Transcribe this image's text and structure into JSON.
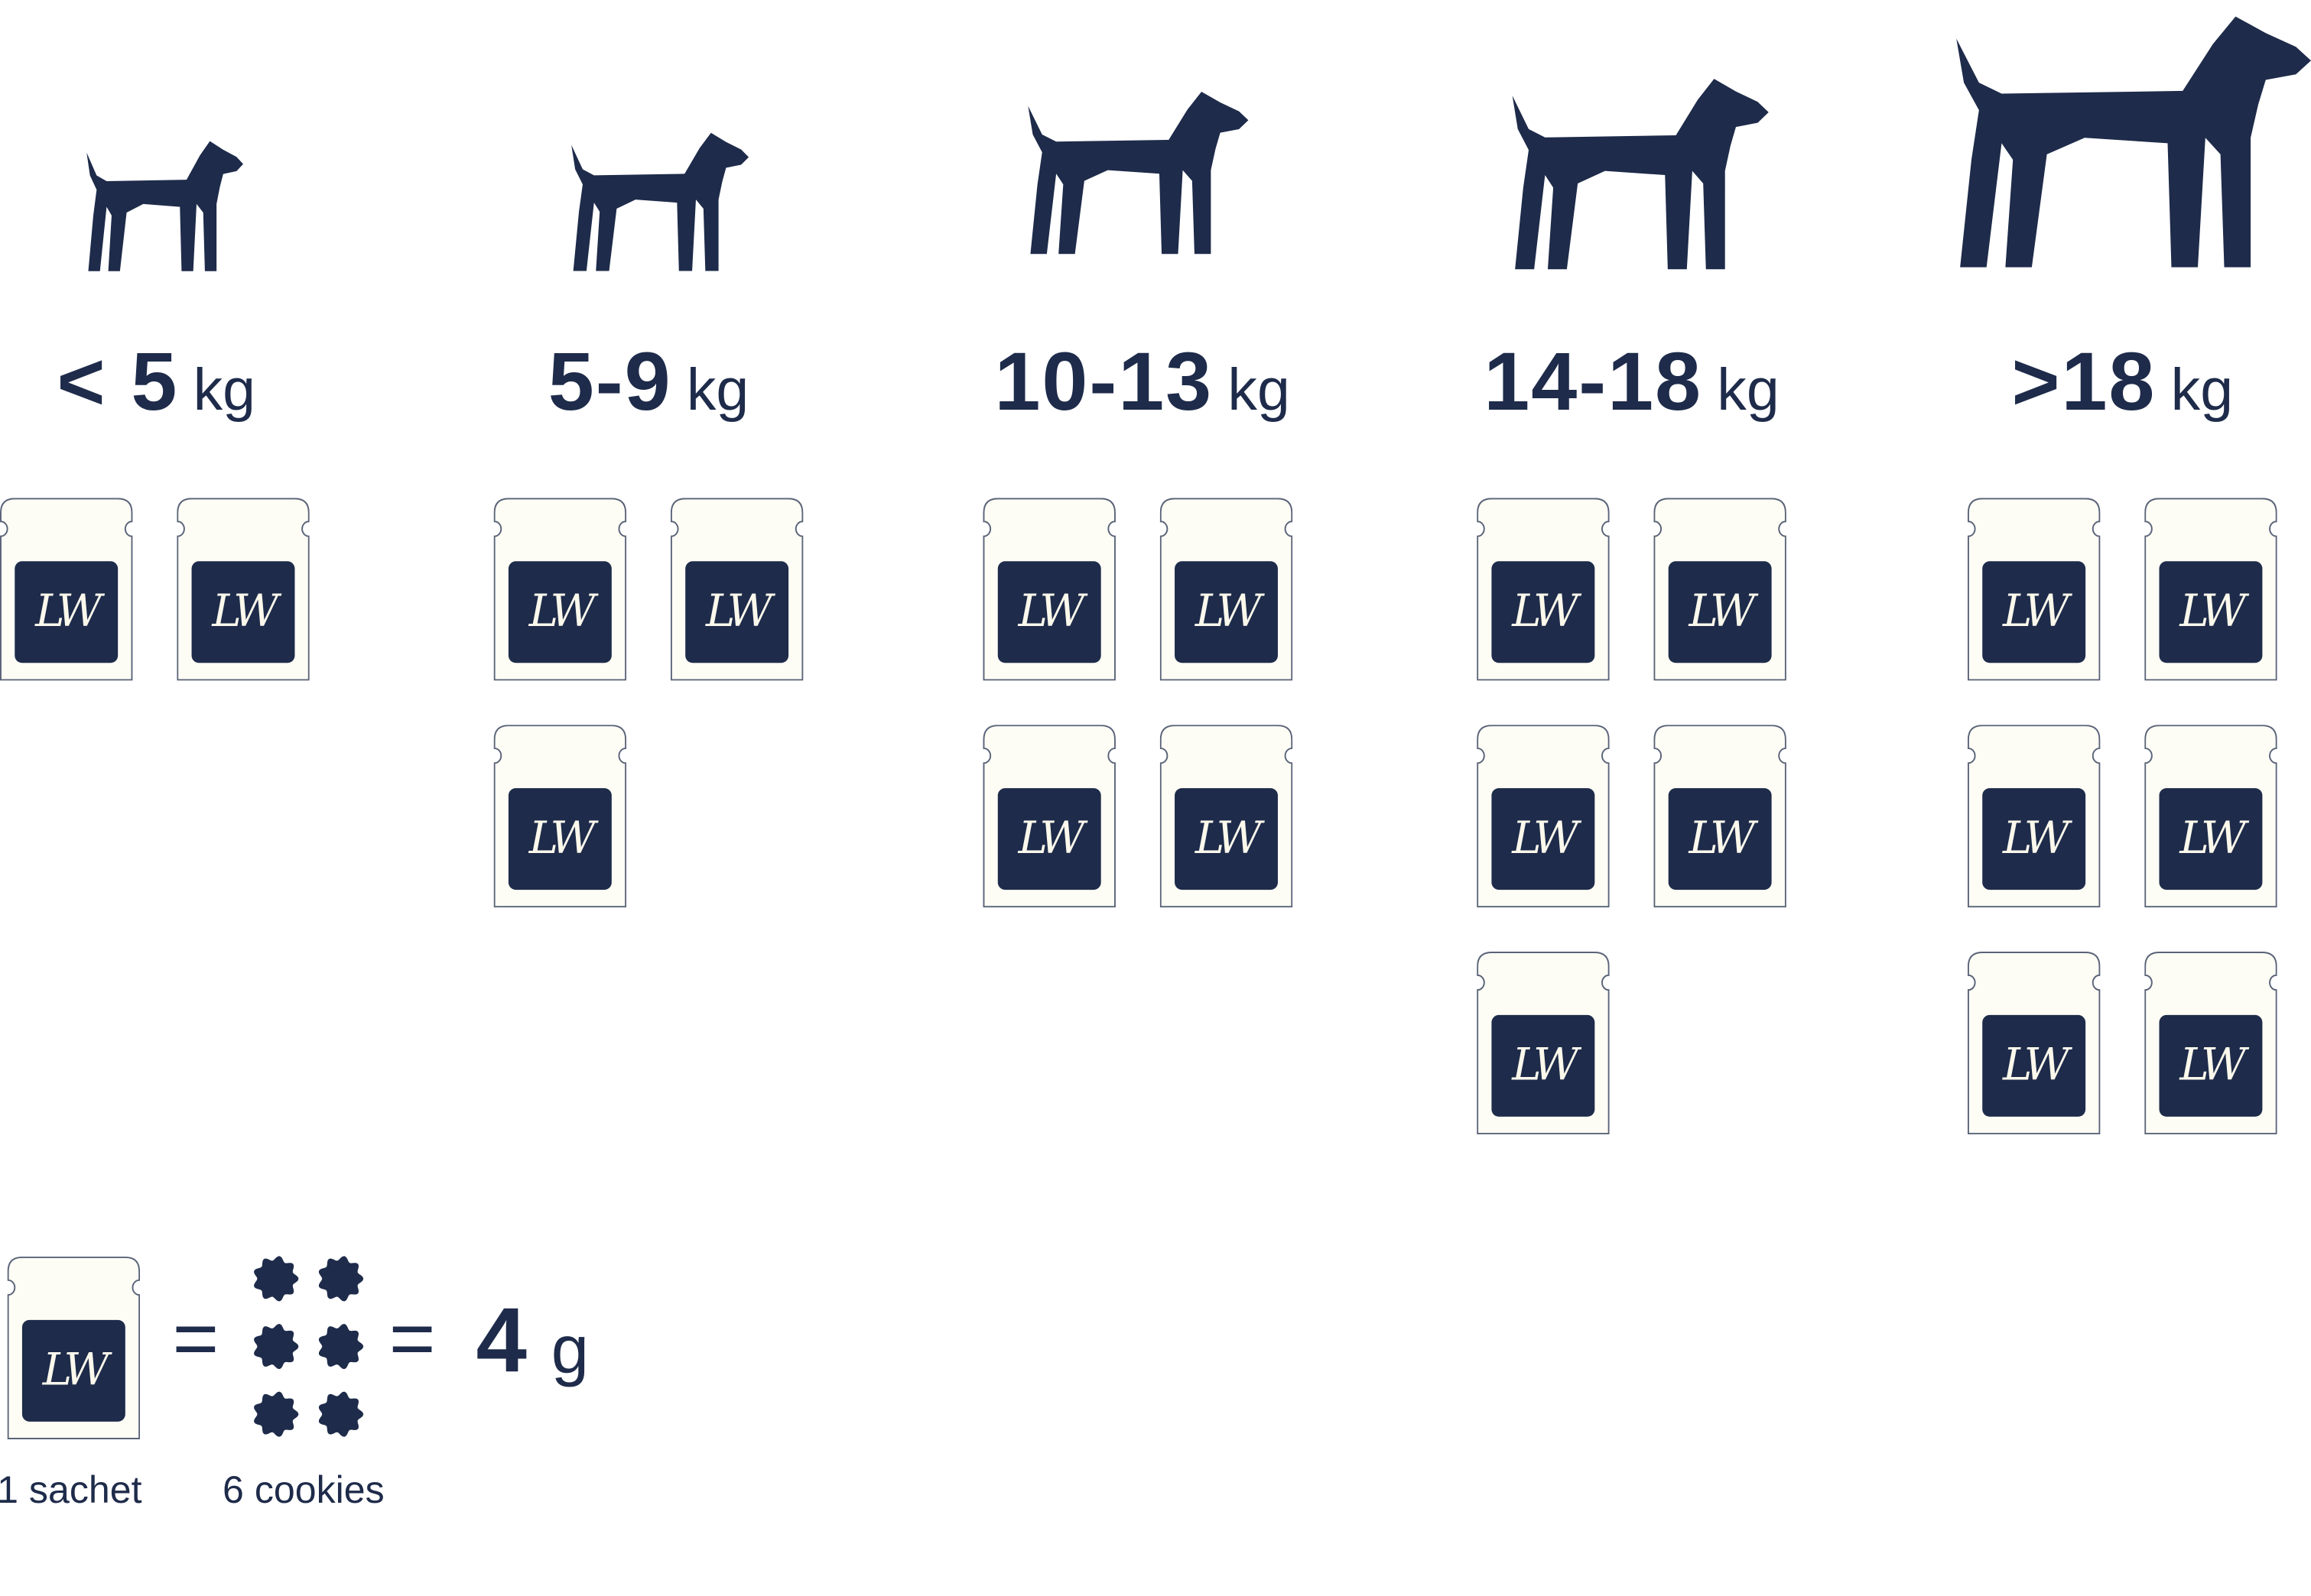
{
  "colors": {
    "navy": "#1e2b4a",
    "sachet_fill": "#fdfdf5",
    "sachet_stroke": "#5a6378",
    "logo_text": "#fbf8ec"
  },
  "groups": [
    {
      "dog": "chihuahua-silhouette-icon",
      "weight": "< 5",
      "unit": "kg",
      "sachets": 2
    },
    {
      "dog": "pug-silhouette-icon",
      "weight": "5-9",
      "unit": "kg",
      "sachets": 3
    },
    {
      "dog": "beagle-silhouette-icon",
      "weight": "10-13",
      "unit": "kg",
      "sachets": 4
    },
    {
      "dog": "schnauzer-silhouette-icon",
      "weight": "14-18",
      "unit": "kg",
      "sachets": 5
    },
    {
      "dog": "husky-silhouette-icon",
      "weight": ">18",
      "unit": "kg",
      "sachets": 6
    }
  ],
  "sachet_logo": "LW",
  "legend": {
    "equals": "=",
    "cookie_count": 6,
    "grams": "4",
    "grams_unit": "g",
    "sachet_caption": "1 sachet",
    "cookies_caption": "6 cookies"
  }
}
